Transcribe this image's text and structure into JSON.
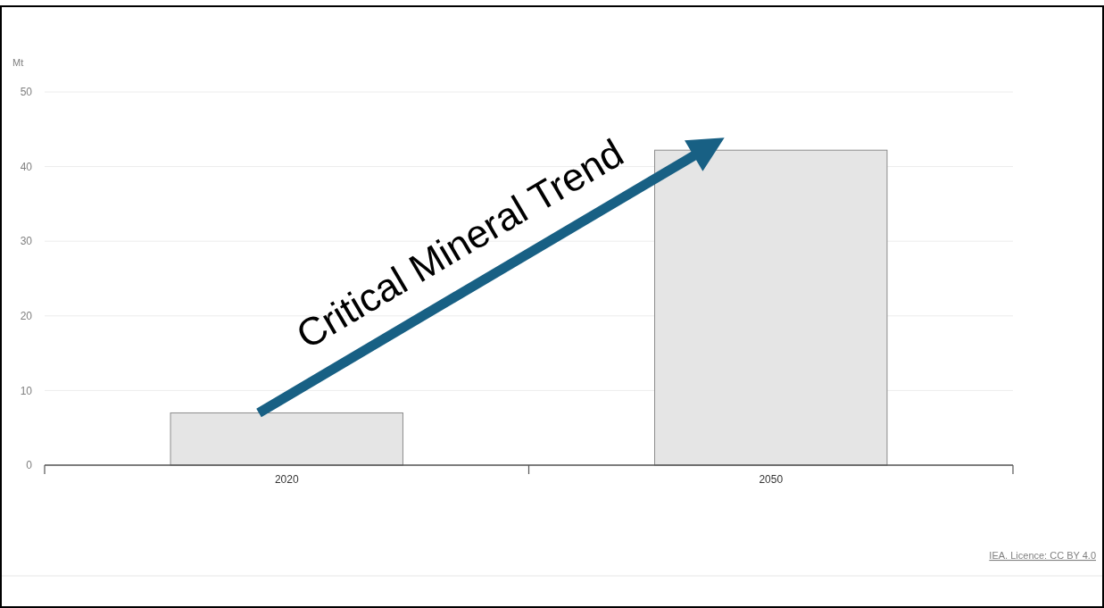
{
  "chart_data": {
    "type": "bar",
    "ylabel": "Mt",
    "categories": [
      "2020",
      "2050"
    ],
    "values": [
      7,
      42.2
    ],
    "color": "#e5e5e5",
    "ylim": [
      0,
      50
    ],
    "yticks": [
      0,
      10,
      20,
      30,
      40,
      50
    ],
    "grid": "y",
    "annotations": [
      "Critical Mineral Trend",
      "IEA. Licence: CC BY 4.0"
    ]
  }
}
